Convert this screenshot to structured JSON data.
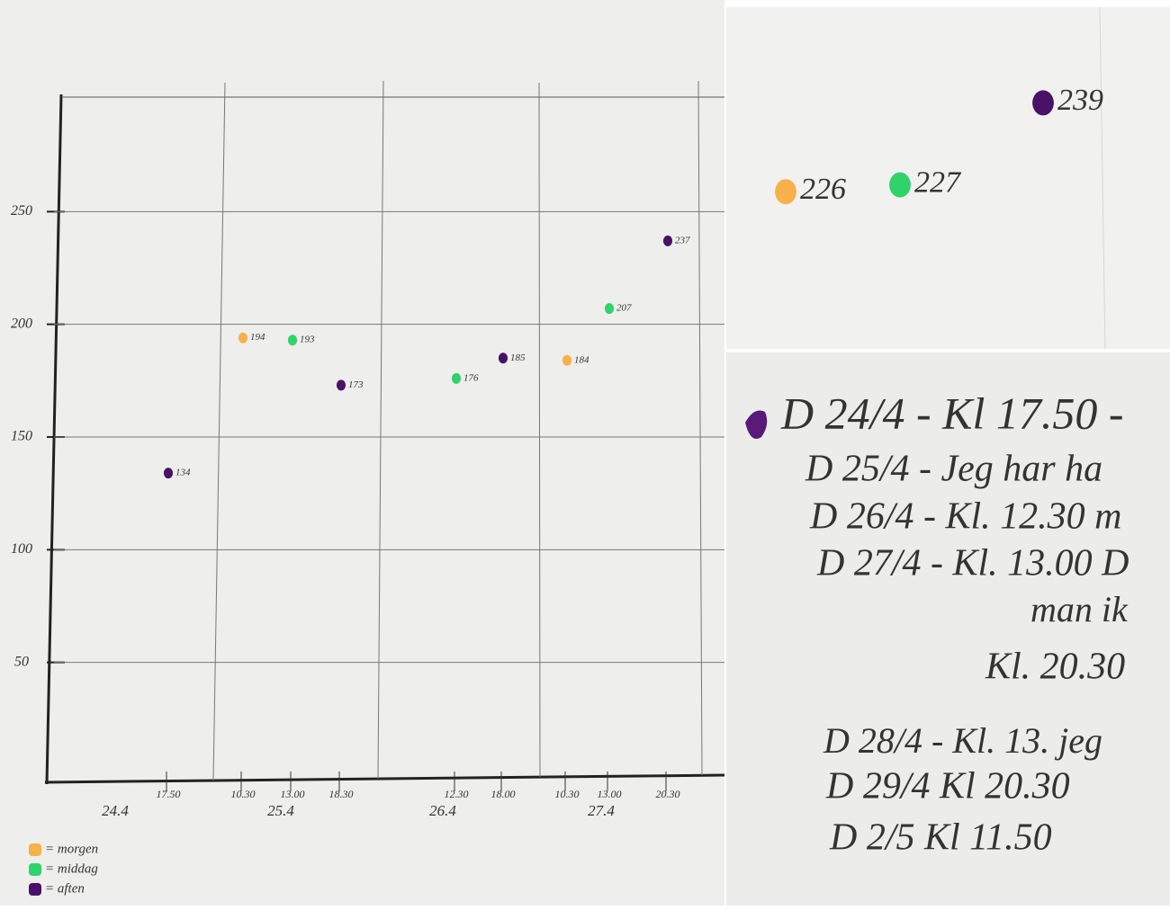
{
  "chart_data": [
    {
      "type": "scatter",
      "categories": [
        "17.50",
        "10.30",
        "13.00",
        "18.30",
        "12.30",
        "18.00",
        "10.30",
        "13.00",
        "20.30"
      ],
      "x_groups": [
        "24.4",
        "25.4",
        "26.4",
        "27.4"
      ],
      "series": [
        {
          "name": "= morgen",
          "color": "#f7b04a",
          "values": [
            null,
            194,
            null,
            null,
            null,
            null,
            184,
            null,
            null
          ]
        },
        {
          "name": "= middag",
          "color": "#2fd36a",
          "values": [
            null,
            null,
            193,
            null,
            176,
            null,
            null,
            207,
            null
          ]
        },
        {
          "name": "= aften",
          "color": "#4a1266",
          "values": [
            134,
            null,
            null,
            173,
            null,
            185,
            null,
            null,
            237
          ]
        }
      ],
      "ylim": [
        0,
        300
      ],
      "yticks": [
        50,
        100,
        150,
        200,
        250
      ],
      "grid": true
    },
    {
      "type": "scatter",
      "categories": [
        null,
        null,
        null
      ],
      "series": [
        {
          "color": "#f7b04a",
          "values": [
            226,
            null,
            null
          ]
        },
        {
          "color": "#2fd36a",
          "values": [
            null,
            227,
            null
          ]
        },
        {
          "color": "#4a1266",
          "values": [
            null,
            null,
            239
          ]
        }
      ],
      "ylim": [
        203,
        253
      ]
    }
  ],
  "notes": {
    "lines": [
      "D 24/4 - Kl 17.50 -",
      "D 25/4 - Jeg har ha",
      "D 26/4 - Kl. 12.30 m",
      "D 27/4 - Kl. 13.00 D",
      "man ik",
      "Kl. 20.30",
      "D 28/4 - Kl. 13. jeg",
      "D 29/4   Kl 20.30",
      "D 2/5   Kl 11.50"
    ]
  }
}
